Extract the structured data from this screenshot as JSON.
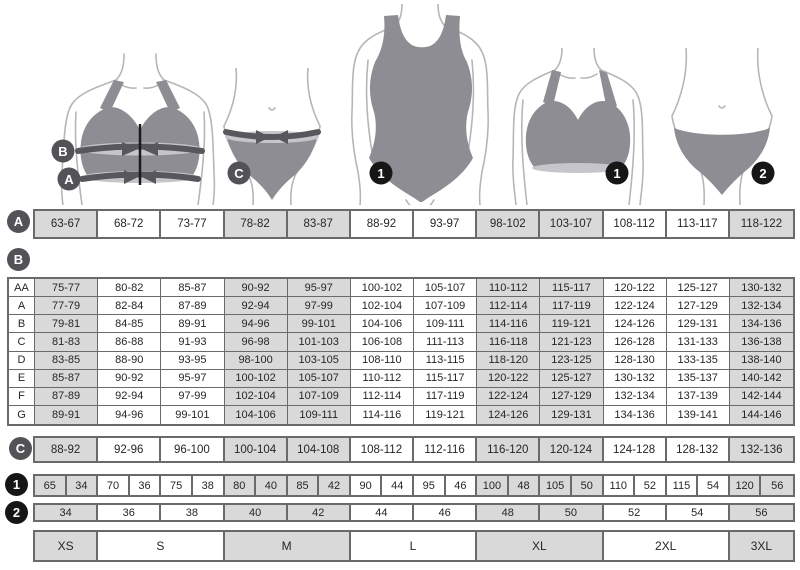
{
  "figures": {
    "bra_measure": {
      "band_b_label": "B",
      "band_a_label": "A"
    },
    "panty_measure": {
      "band_c_label": "C"
    },
    "bodysuit": {
      "label": "1"
    },
    "bra": {
      "label": "1"
    },
    "panty": {
      "label": "2"
    }
  },
  "tables": {
    "a": {
      "label": "A",
      "values": [
        "63-67",
        "68-72",
        "73-77",
        "78-82",
        "83-87",
        "88-92",
        "93-97",
        "98-102",
        "103-107",
        "108-112",
        "113-117",
        "118-122"
      ]
    },
    "b": {
      "label": "B",
      "rows": [
        {
          "label": "AA",
          "values": [
            "75-77",
            "80-82",
            "85-87",
            "90-92",
            "95-97",
            "100-102",
            "105-107",
            "110-112",
            "115-117",
            "120-122",
            "125-127",
            "130-132"
          ]
        },
        {
          "label": "A",
          "values": [
            "77-79",
            "82-84",
            "87-89",
            "92-94",
            "97-99",
            "102-104",
            "107-109",
            "112-114",
            "117-119",
            "122-124",
            "127-129",
            "132-134"
          ]
        },
        {
          "label": "B",
          "values": [
            "79-81",
            "84-85",
            "89-91",
            "94-96",
            "99-101",
            "104-106",
            "109-111",
            "114-116",
            "119-121",
            "124-126",
            "129-131",
            "134-136"
          ]
        },
        {
          "label": "C",
          "values": [
            "81-83",
            "86-88",
            "91-93",
            "96-98",
            "101-103",
            "106-108",
            "111-113",
            "116-118",
            "121-123",
            "126-128",
            "131-133",
            "136-138"
          ]
        },
        {
          "label": "D",
          "values": [
            "83-85",
            "88-90",
            "93-95",
            "98-100",
            "103-105",
            "108-110",
            "113-115",
            "118-120",
            "123-125",
            "128-130",
            "133-135",
            "138-140"
          ]
        },
        {
          "label": "E",
          "values": [
            "85-87",
            "90-92",
            "95-97",
            "100-102",
            "105-107",
            "110-112",
            "115-117",
            "120-122",
            "125-127",
            "130-132",
            "135-137",
            "140-142"
          ]
        },
        {
          "label": "F",
          "values": [
            "87-89",
            "92-94",
            "97-99",
            "102-104",
            "107-109",
            "112-114",
            "117-119",
            "122-124",
            "127-129",
            "132-134",
            "137-139",
            "142-144"
          ]
        },
        {
          "label": "G",
          "values": [
            "89-91",
            "94-96",
            "99-101",
            "104-106",
            "109-111",
            "114-116",
            "119-121",
            "124-126",
            "129-131",
            "134-136",
            "139-141",
            "144-146"
          ]
        }
      ]
    },
    "c": {
      "label": "C",
      "values": [
        "88-92",
        "92-96",
        "96-100",
        "100-104",
        "104-108",
        "108-112",
        "112-116",
        "116-120",
        "120-124",
        "124-128",
        "128-132",
        "132-136"
      ]
    },
    "row1": {
      "label": "1",
      "values": [
        "65",
        "34",
        "70",
        "36",
        "75",
        "38",
        "80",
        "40",
        "85",
        "42",
        "90",
        "44",
        "95",
        "46",
        "100",
        "48",
        "105",
        "50",
        "110",
        "52",
        "115",
        "54",
        "120",
        "56"
      ]
    },
    "row2": {
      "label": "2",
      "values": [
        "34",
        "36",
        "38",
        "40",
        "42",
        "44",
        "46",
        "48",
        "50",
        "52",
        "54",
        "56"
      ]
    },
    "sizes": [
      {
        "label": "XS",
        "span": 1
      },
      {
        "label": "S",
        "span": 2
      },
      {
        "label": "M",
        "span": 2
      },
      {
        "label": "L",
        "span": 2
      },
      {
        "label": "XL",
        "span": 2
      },
      {
        "label": "2XL",
        "span": 2
      },
      {
        "label": "3XL",
        "span": 1
      }
    ]
  },
  "colors": {
    "cell_shaded": "#d9d9d9",
    "table_border": "#6a6a6a",
    "garment_gray": "#8d8d93",
    "badge_gray": "#535357",
    "badge_black": "#161616"
  }
}
